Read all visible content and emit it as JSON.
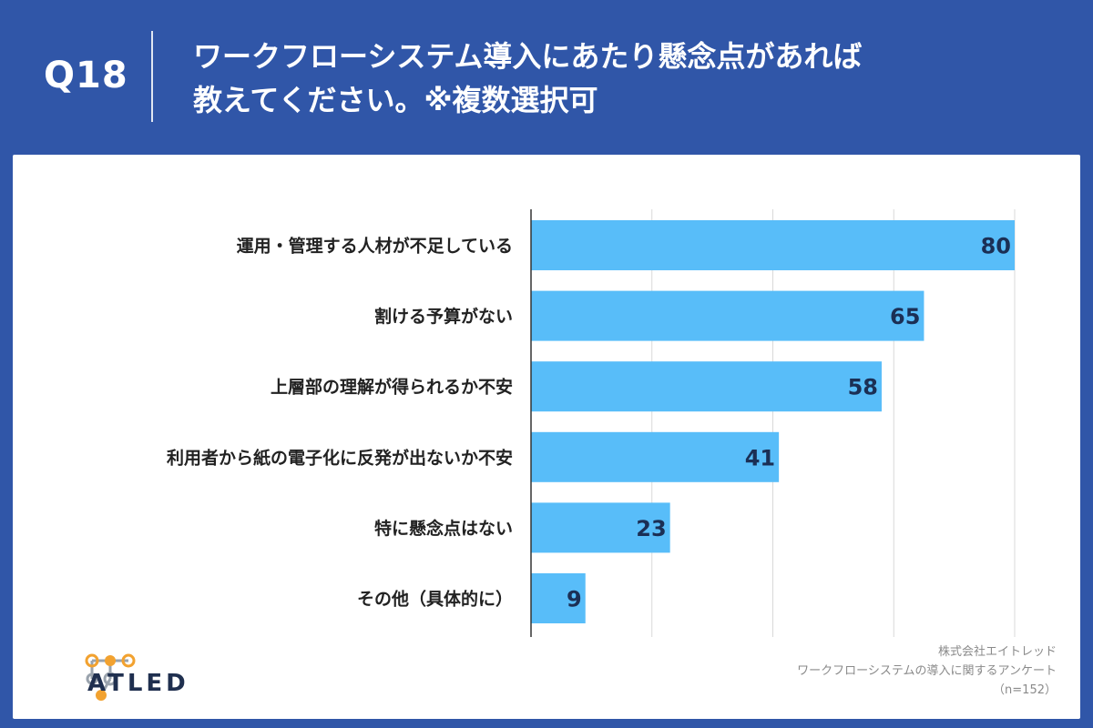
{
  "header": {
    "qnum": "Q18",
    "title_line1": "ワークフローシステム導入にあたり懸念点があれば",
    "title_line2": "教えてください。※複数選択可"
  },
  "chart_data": {
    "type": "bar",
    "orientation": "horizontal",
    "categories": [
      "運用・管理する人材が不足している",
      "割ける予算がない",
      "上層部の理解が得られるか不安",
      "利用者から紙の電子化に反発が出ないか不安",
      "特に懸念点はない",
      "その他（具体的に）"
    ],
    "values": [
      80,
      65,
      58,
      41,
      23,
      9
    ],
    "xlim": [
      0,
      80
    ],
    "grid": true,
    "bar_color": "#58bdf9",
    "title": "ワークフローシステム導入にあたり懸念点があれば教えてください。※複数選択可"
  },
  "logo": {
    "text": "ATLED",
    "icon": "atled-molecule-icon"
  },
  "source": {
    "company": "株式会社エイトレッド",
    "survey": "ワークフローシステムの導入に関するアンケート",
    "n": "（n=152）"
  },
  "colors": {
    "background": "#3056a8",
    "panel": "#ffffff",
    "bar": "#58bdf9",
    "logo_orange": "#f2a230"
  }
}
